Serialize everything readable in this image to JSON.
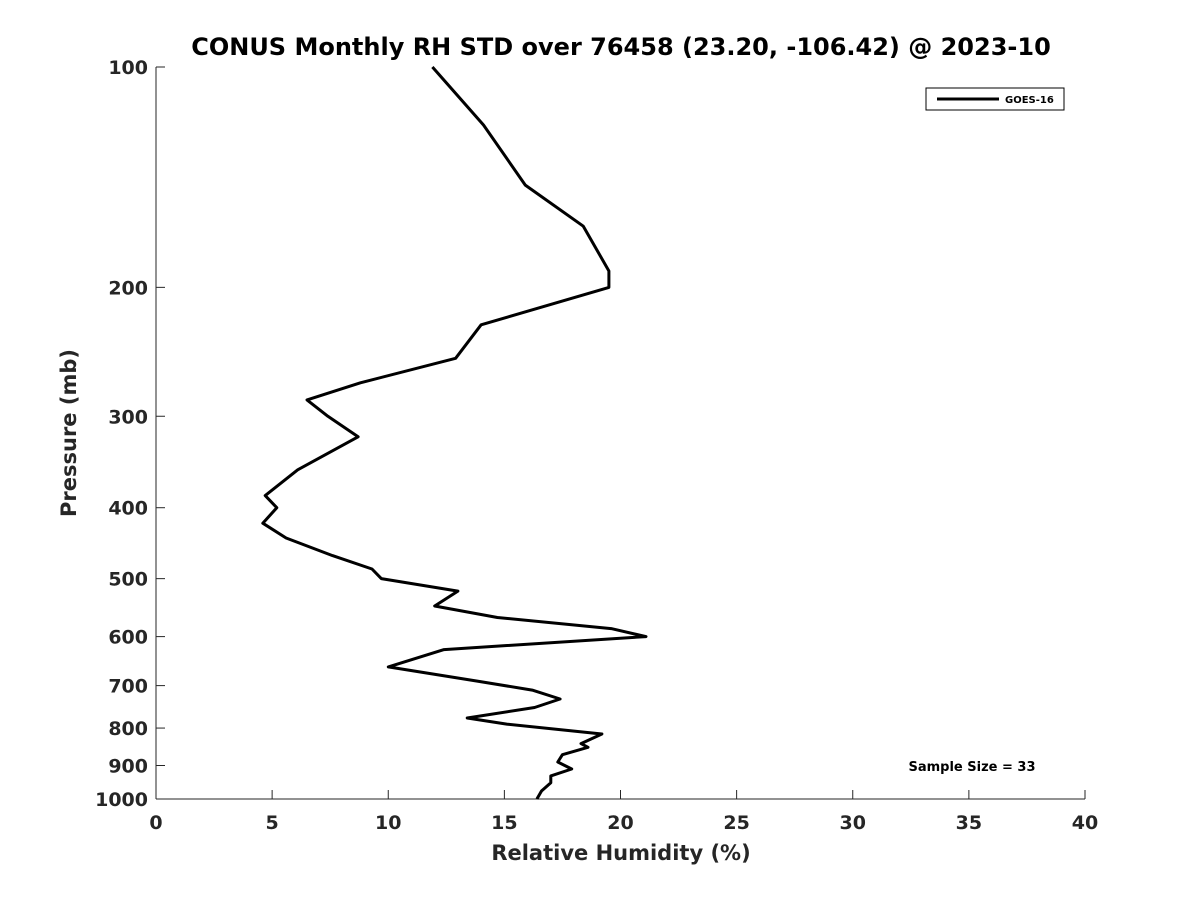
{
  "chart_data": {
    "type": "line",
    "title": "CONUS Monthly RH STD over 76458 (23.20, -106.42) @ 2023-10",
    "xlabel": "Relative Humidity (%)",
    "ylabel": "Pressure (mb)",
    "xlim": [
      0,
      40
    ],
    "ylim": [
      1000,
      100
    ],
    "y_scale": "log",
    "y_reversed": true,
    "grid": false,
    "legend_position": "top-right",
    "xticks": [
      "0",
      "5",
      "10",
      "15",
      "20",
      "25",
      "30",
      "35",
      "40"
    ],
    "yticks": [
      "100",
      "200",
      "300",
      "400",
      "500",
      "600",
      "700",
      "800",
      "900",
      "1000"
    ],
    "series": [
      {
        "name": "GOES-16",
        "color": "#000000",
        "x": [
          11.9,
          14.1,
          15.9,
          18.4,
          19.5,
          19.5,
          14.0,
          12.9,
          8.8,
          6.5,
          7.4,
          8.7,
          6.1,
          4.7,
          5.2,
          4.6,
          5.6,
          7.6,
          9.3,
          9.7,
          13.0,
          12.0,
          14.7,
          19.6,
          21.1,
          12.4,
          10.0,
          13.8,
          16.2,
          17.4,
          16.3,
          13.4,
          15.1,
          19.2,
          18.3,
          18.6,
          17.5,
          17.3,
          17.9,
          17.0,
          17.0,
          16.6,
          16.4
        ],
        "y": [
          100,
          120,
          145,
          165,
          190,
          200,
          225,
          250,
          270,
          285,
          300,
          320,
          355,
          385,
          400,
          420,
          440,
          465,
          485,
          500,
          520,
          545,
          565,
          585,
          600,
          625,
          660,
          690,
          710,
          730,
          750,
          775,
          790,
          815,
          840,
          850,
          870,
          890,
          910,
          930,
          950,
          975,
          1000
        ]
      }
    ],
    "annotation": "Sample Size = 33"
  }
}
